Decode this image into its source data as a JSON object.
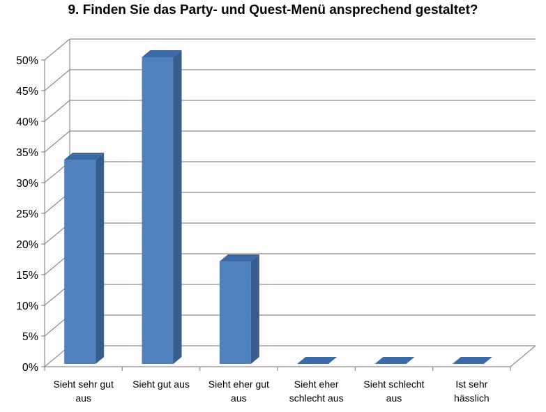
{
  "chart_data": {
    "type": "bar",
    "title": "9. Finden Sie das Party- und Quest-Menü ansprechend gestaltet?",
    "categories": [
      [
        "Sieht sehr gut",
        "aus"
      ],
      [
        "Sieht gut aus"
      ],
      [
        "Sieht eher gut",
        "aus"
      ],
      [
        "Sieht eher",
        "schlecht aus"
      ],
      [
        "Sieht schlecht",
        "aus"
      ],
      [
        "Ist sehr",
        "hässlich"
      ]
    ],
    "values": [
      33.3,
      50,
      16.7,
      0,
      0,
      0
    ],
    "yticks": [
      "0%",
      "5%",
      "10%",
      "15%",
      "20%",
      "25%",
      "30%",
      "35%",
      "40%",
      "45%",
      "50%"
    ],
    "ylim": [
      0,
      50
    ],
    "grid": true,
    "colors": {
      "bar_front": "#4f81bd",
      "bar_side": "#385d8a",
      "bar_top": "#3a6aa8",
      "grid": "#8c8c8c"
    }
  }
}
